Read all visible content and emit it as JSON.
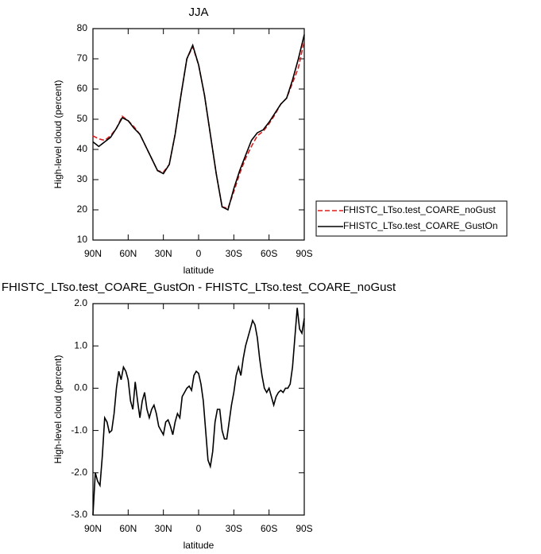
{
  "chart_data": [
    {
      "type": "line",
      "title": "JJA",
      "xlabel": "latitude",
      "ylabel": "High-level cloud (percent)",
      "x": [
        90,
        85,
        80,
        75,
        70,
        65,
        60,
        55,
        50,
        45,
        40,
        35,
        30,
        25,
        20,
        15,
        10,
        5,
        0,
        -5,
        -10,
        -15,
        -20,
        -25,
        -30,
        -35,
        -40,
        -45,
        -50,
        -55,
        -60,
        -65,
        -70,
        -75,
        -80,
        -85,
        -90
      ],
      "series": [
        {
          "name": "FHISTC_LTso.test_COARE_noGust",
          "color": "#e41a1c",
          "line_style": "dashed",
          "values": [
            44.5,
            43.5,
            43,
            44.5,
            47,
            51,
            49.5,
            47.5,
            45,
            41,
            37,
            33,
            32.5,
            35,
            45,
            58,
            70,
            74,
            68,
            58,
            45,
            32,
            21,
            20.5,
            26,
            32,
            37,
            41,
            44.5,
            46,
            48.5,
            51.5,
            55,
            57,
            62,
            67,
            76
          ]
        },
        {
          "name": "FHISTC_LTso.test_COARE_GustOn",
          "color": "#000000",
          "line_style": "solid",
          "values": [
            42.5,
            41,
            42.5,
            44,
            47,
            50.5,
            49.5,
            47,
            45,
            41,
            37,
            33,
            32,
            35,
            45,
            58,
            70,
            74.5,
            68,
            58,
            45,
            32,
            21,
            20,
            27,
            33,
            38,
            43,
            45.5,
            46.5,
            49,
            52,
            55,
            57,
            63,
            70,
            78
          ]
        }
      ],
      "xlim": [
        90,
        -90
      ],
      "xticks": [
        {
          "value": 90,
          "label": "90N"
        },
        {
          "value": 60,
          "label": "60N"
        },
        {
          "value": 30,
          "label": "30N"
        },
        0,
        {
          "value": -30,
          "label": "30S"
        },
        {
          "value": -60,
          "label": "60S"
        },
        {
          "value": -90,
          "label": "90S"
        }
      ],
      "ylim": [
        10,
        80
      ],
      "yticks": [
        10,
        20,
        30,
        40,
        50,
        60,
        70,
        80
      ],
      "legend": "right"
    },
    {
      "type": "line",
      "title": "FHISTC_LTso.test_COARE_GustOn - FHISTC_LTso.test_COARE_noGust",
      "xlabel": "latitude",
      "ylabel": "High-level cloud (percent)",
      "x": [
        90,
        88,
        86,
        84,
        82,
        80,
        78,
        76,
        74,
        72,
        70,
        68,
        66,
        64,
        62,
        60,
        58,
        56,
        54,
        52,
        50,
        48,
        46,
        44,
        42,
        40,
        38,
        36,
        34,
        32,
        30,
        28,
        26,
        24,
        22,
        20,
        18,
        16,
        14,
        12,
        10,
        8,
        6,
        4,
        2,
        0,
        -2,
        -4,
        -6,
        -8,
        -10,
        -12,
        -14,
        -16,
        -18,
        -20,
        -22,
        -24,
        -26,
        -28,
        -30,
        -32,
        -34,
        -36,
        -38,
        -40,
        -42,
        -44,
        -46,
        -48,
        -50,
        -52,
        -54,
        -56,
        -58,
        -60,
        -62,
        -64,
        -66,
        -68,
        -70,
        -72,
        -74,
        -76,
        -78,
        -80,
        -82,
        -84,
        -86,
        -88,
        -90
      ],
      "series": [
        {
          "color": "#000000",
          "line_style": "solid",
          "values": [
            -3.0,
            -2.0,
            -2.2,
            -2.3,
            -1.6,
            -0.7,
            -0.8,
            -1.05,
            -1.0,
            -0.6,
            0.0,
            0.4,
            0.2,
            0.5,
            0.4,
            0.2,
            -0.3,
            -0.5,
            0.15,
            -0.3,
            -0.7,
            -0.3,
            -0.1,
            -0.5,
            -0.7,
            -0.5,
            -0.4,
            -0.6,
            -0.9,
            -1.0,
            -1.1,
            -0.8,
            -0.75,
            -0.9,
            -1.1,
            -0.8,
            -0.6,
            -0.7,
            -0.2,
            -0.1,
            0.0,
            0.05,
            -0.05,
            0.3,
            0.4,
            0.35,
            0.1,
            -0.3,
            -1.0,
            -1.7,
            -1.85,
            -1.5,
            -0.8,
            -0.5,
            -0.5,
            -1.0,
            -1.2,
            -1.2,
            -0.8,
            -0.4,
            -0.1,
            0.3,
            0.5,
            0.3,
            0.7,
            1.0,
            1.2,
            1.4,
            1.6,
            1.5,
            1.2,
            0.7,
            0.3,
            0.0,
            -0.1,
            0.0,
            -0.2,
            -0.4,
            -0.2,
            -0.1,
            -0.05,
            -0.1,
            0.0,
            0.0,
            0.1,
            0.5,
            1.2,
            1.9,
            1.4,
            1.3,
            1.65
          ]
        }
      ],
      "xlim": [
        90,
        -90
      ],
      "xticks": [
        {
          "value": 90,
          "label": "90N"
        },
        {
          "value": 60,
          "label": "60N"
        },
        {
          "value": 30,
          "label": "30N"
        },
        0,
        {
          "value": -30,
          "label": "30S"
        },
        {
          "value": -60,
          "label": "60S"
        },
        {
          "value": -90,
          "label": "90S"
        }
      ],
      "ylim": [
        -3,
        2
      ],
      "yticks": [
        {
          "value": 2,
          "label": "2.0"
        },
        {
          "value": 1,
          "label": "1.0"
        },
        {
          "value": 0,
          "label": "0.0"
        },
        {
          "value": -1,
          "label": "-1.0"
        },
        {
          "value": -2,
          "label": "-2.0"
        },
        {
          "value": -3,
          "label": "-3.0"
        }
      ]
    }
  ]
}
